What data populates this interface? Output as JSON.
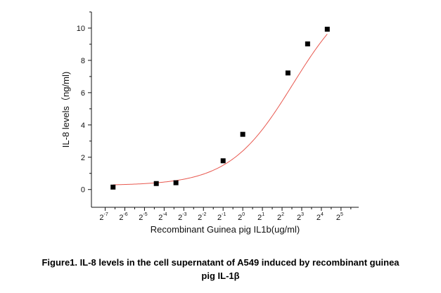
{
  "chart_data": {
    "type": "scatter",
    "xlabel": "Recombinant Guinea pig IL1b(ug/ml)",
    "ylabel": "IL-8 levels（ng/ml)",
    "x_scale": "log2",
    "xlim_exponent": [
      -7.7,
      5.9
    ],
    "ylim": [
      -1.1,
      11.0
    ],
    "x_ticks": [
      {
        "base": "2",
        "exp": "-7",
        "value": -7
      },
      {
        "base": "2",
        "exp": "-6",
        "value": -6
      },
      {
        "base": "2",
        "exp": "-5",
        "value": -5
      },
      {
        "base": "2",
        "exp": "-4",
        "value": -4
      },
      {
        "base": "2",
        "exp": "-3",
        "value": -3
      },
      {
        "base": "2",
        "exp": "-2",
        "value": -2
      },
      {
        "base": "2",
        "exp": "-1",
        "value": -1
      },
      {
        "base": "2",
        "exp": "0",
        "value": 0
      },
      {
        "base": "2",
        "exp": "1",
        "value": 1
      },
      {
        "base": "2",
        "exp": "2",
        "value": 2
      },
      {
        "base": "2",
        "exp": "3",
        "value": 3
      },
      {
        "base": "2",
        "exp": "4",
        "value": 4
      },
      {
        "base": "2",
        "exp": "5",
        "value": 5
      }
    ],
    "y_ticks": [
      "0",
      "2",
      "4",
      "6",
      "8",
      "10"
    ],
    "series": [
      {
        "marker": "square",
        "color": "#000000",
        "points": [
          {
            "x_exp": -6.6,
            "y": 0.15
          },
          {
            "x_exp": -4.4,
            "y": 0.37
          },
          {
            "x_exp": -3.4,
            "y": 0.42
          },
          {
            "x_exp": -1.0,
            "y": 1.78
          },
          {
            "x_exp": 0.0,
            "y": 3.42
          },
          {
            "x_exp": 2.3,
            "y": 7.22
          },
          {
            "x_exp": 3.3,
            "y": 9.02
          },
          {
            "x_exp": 4.3,
            "y": 9.93
          }
        ]
      }
    ],
    "fit_curve": {
      "type": "sigmoid",
      "color": "#e8584f",
      "bottom": 0.25,
      "top": 12.8,
      "x_mid_exp": 2.55,
      "slope": 0.62
    }
  },
  "caption": {
    "line1": "Figure1. IL-8 levels in the cell supernatant of A549 induced by recombinant guinea",
    "line2": "pig IL-1β"
  }
}
